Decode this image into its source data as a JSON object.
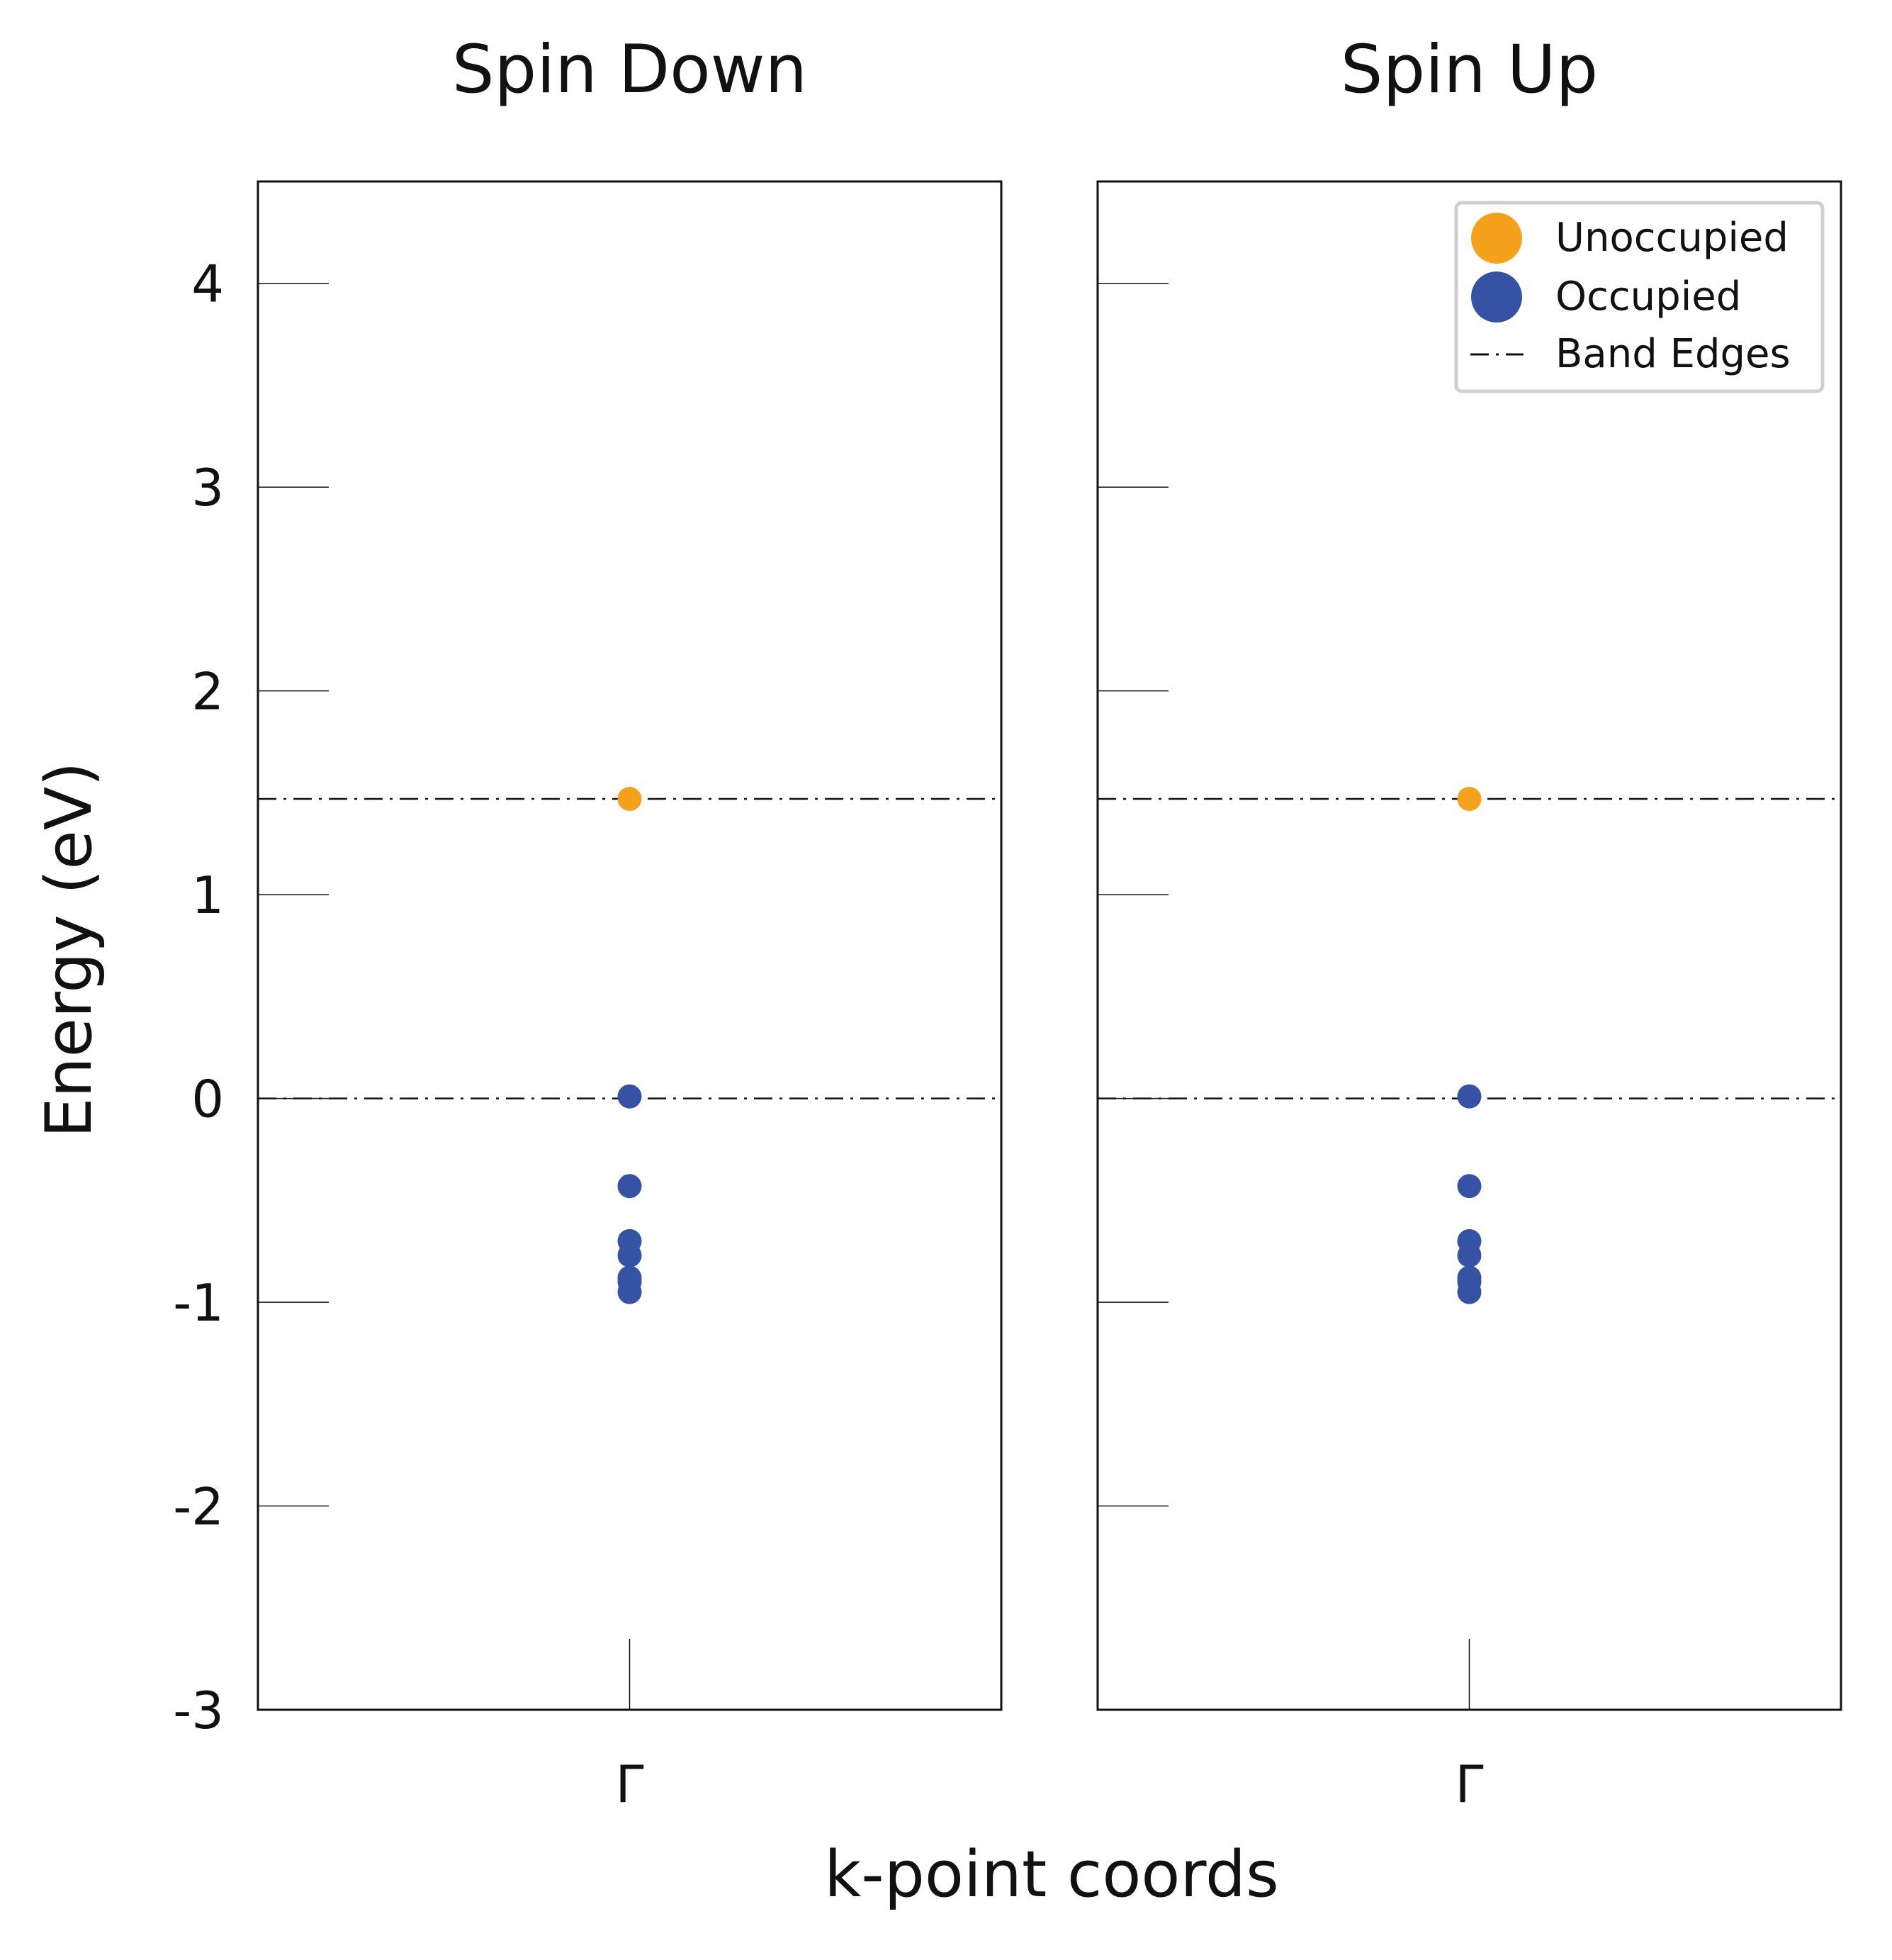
{
  "chart_data": [
    {
      "type": "scatter",
      "title": "Spin Down",
      "x_categories": [
        "Γ"
      ],
      "ylim": [
        -3,
        4.5
      ],
      "yticks": [
        -3,
        -2,
        -1,
        0,
        1,
        2,
        3,
        4
      ],
      "band_edges": [
        0,
        1.47
      ],
      "series": [
        {
          "name": "Unoccupied",
          "color": "#f5a11c",
          "points": [
            {
              "x": "Γ",
              "y": 1.47
            }
          ]
        },
        {
          "name": "Occupied",
          "color": "#3652a5",
          "points": [
            {
              "x": "Γ",
              "y": 0.01
            },
            {
              "x": "Γ",
              "y": -0.43
            },
            {
              "x": "Γ",
              "y": -0.7
            },
            {
              "x": "Γ",
              "y": -0.77
            },
            {
              "x": "Γ",
              "y": -0.88
            },
            {
              "x": "Γ",
              "y": -0.9
            },
            {
              "x": "Γ",
              "y": -0.95
            }
          ]
        }
      ]
    },
    {
      "type": "scatter",
      "title": "Spin Up",
      "x_categories": [
        "Γ"
      ],
      "ylim": [
        -3,
        4.5
      ],
      "yticks": [
        -3,
        -2,
        -1,
        0,
        1,
        2,
        3,
        4
      ],
      "band_edges": [
        0,
        1.47
      ],
      "series": [
        {
          "name": "Unoccupied",
          "color": "#f5a11c",
          "points": [
            {
              "x": "Γ",
              "y": 1.47
            }
          ]
        },
        {
          "name": "Occupied",
          "color": "#3652a5",
          "points": [
            {
              "x": "Γ",
              "y": 0.01
            },
            {
              "x": "Γ",
              "y": -0.43
            },
            {
              "x": "Γ",
              "y": -0.7
            },
            {
              "x": "Γ",
              "y": -0.77
            },
            {
              "x": "Γ",
              "y": -0.88
            },
            {
              "x": "Γ",
              "y": -0.9
            },
            {
              "x": "Γ",
              "y": -0.95
            }
          ]
        }
      ]
    }
  ],
  "shared": {
    "ylabel": "Energy (eV)",
    "xlabel": "k-point coords",
    "ytick_labels": [
      "-3",
      "-2",
      "-1",
      "0",
      "1",
      "2",
      "3",
      "4"
    ]
  },
  "legend": {
    "placement": "top-right",
    "entries": [
      {
        "label": "Unoccupied",
        "marker": "circle",
        "color": "#f5a11c"
      },
      {
        "label": "Occupied",
        "marker": "circle",
        "color": "#3652a5"
      },
      {
        "label": "Band Edges",
        "marker": "dash-dot-line",
        "color": "#111111"
      }
    ]
  }
}
